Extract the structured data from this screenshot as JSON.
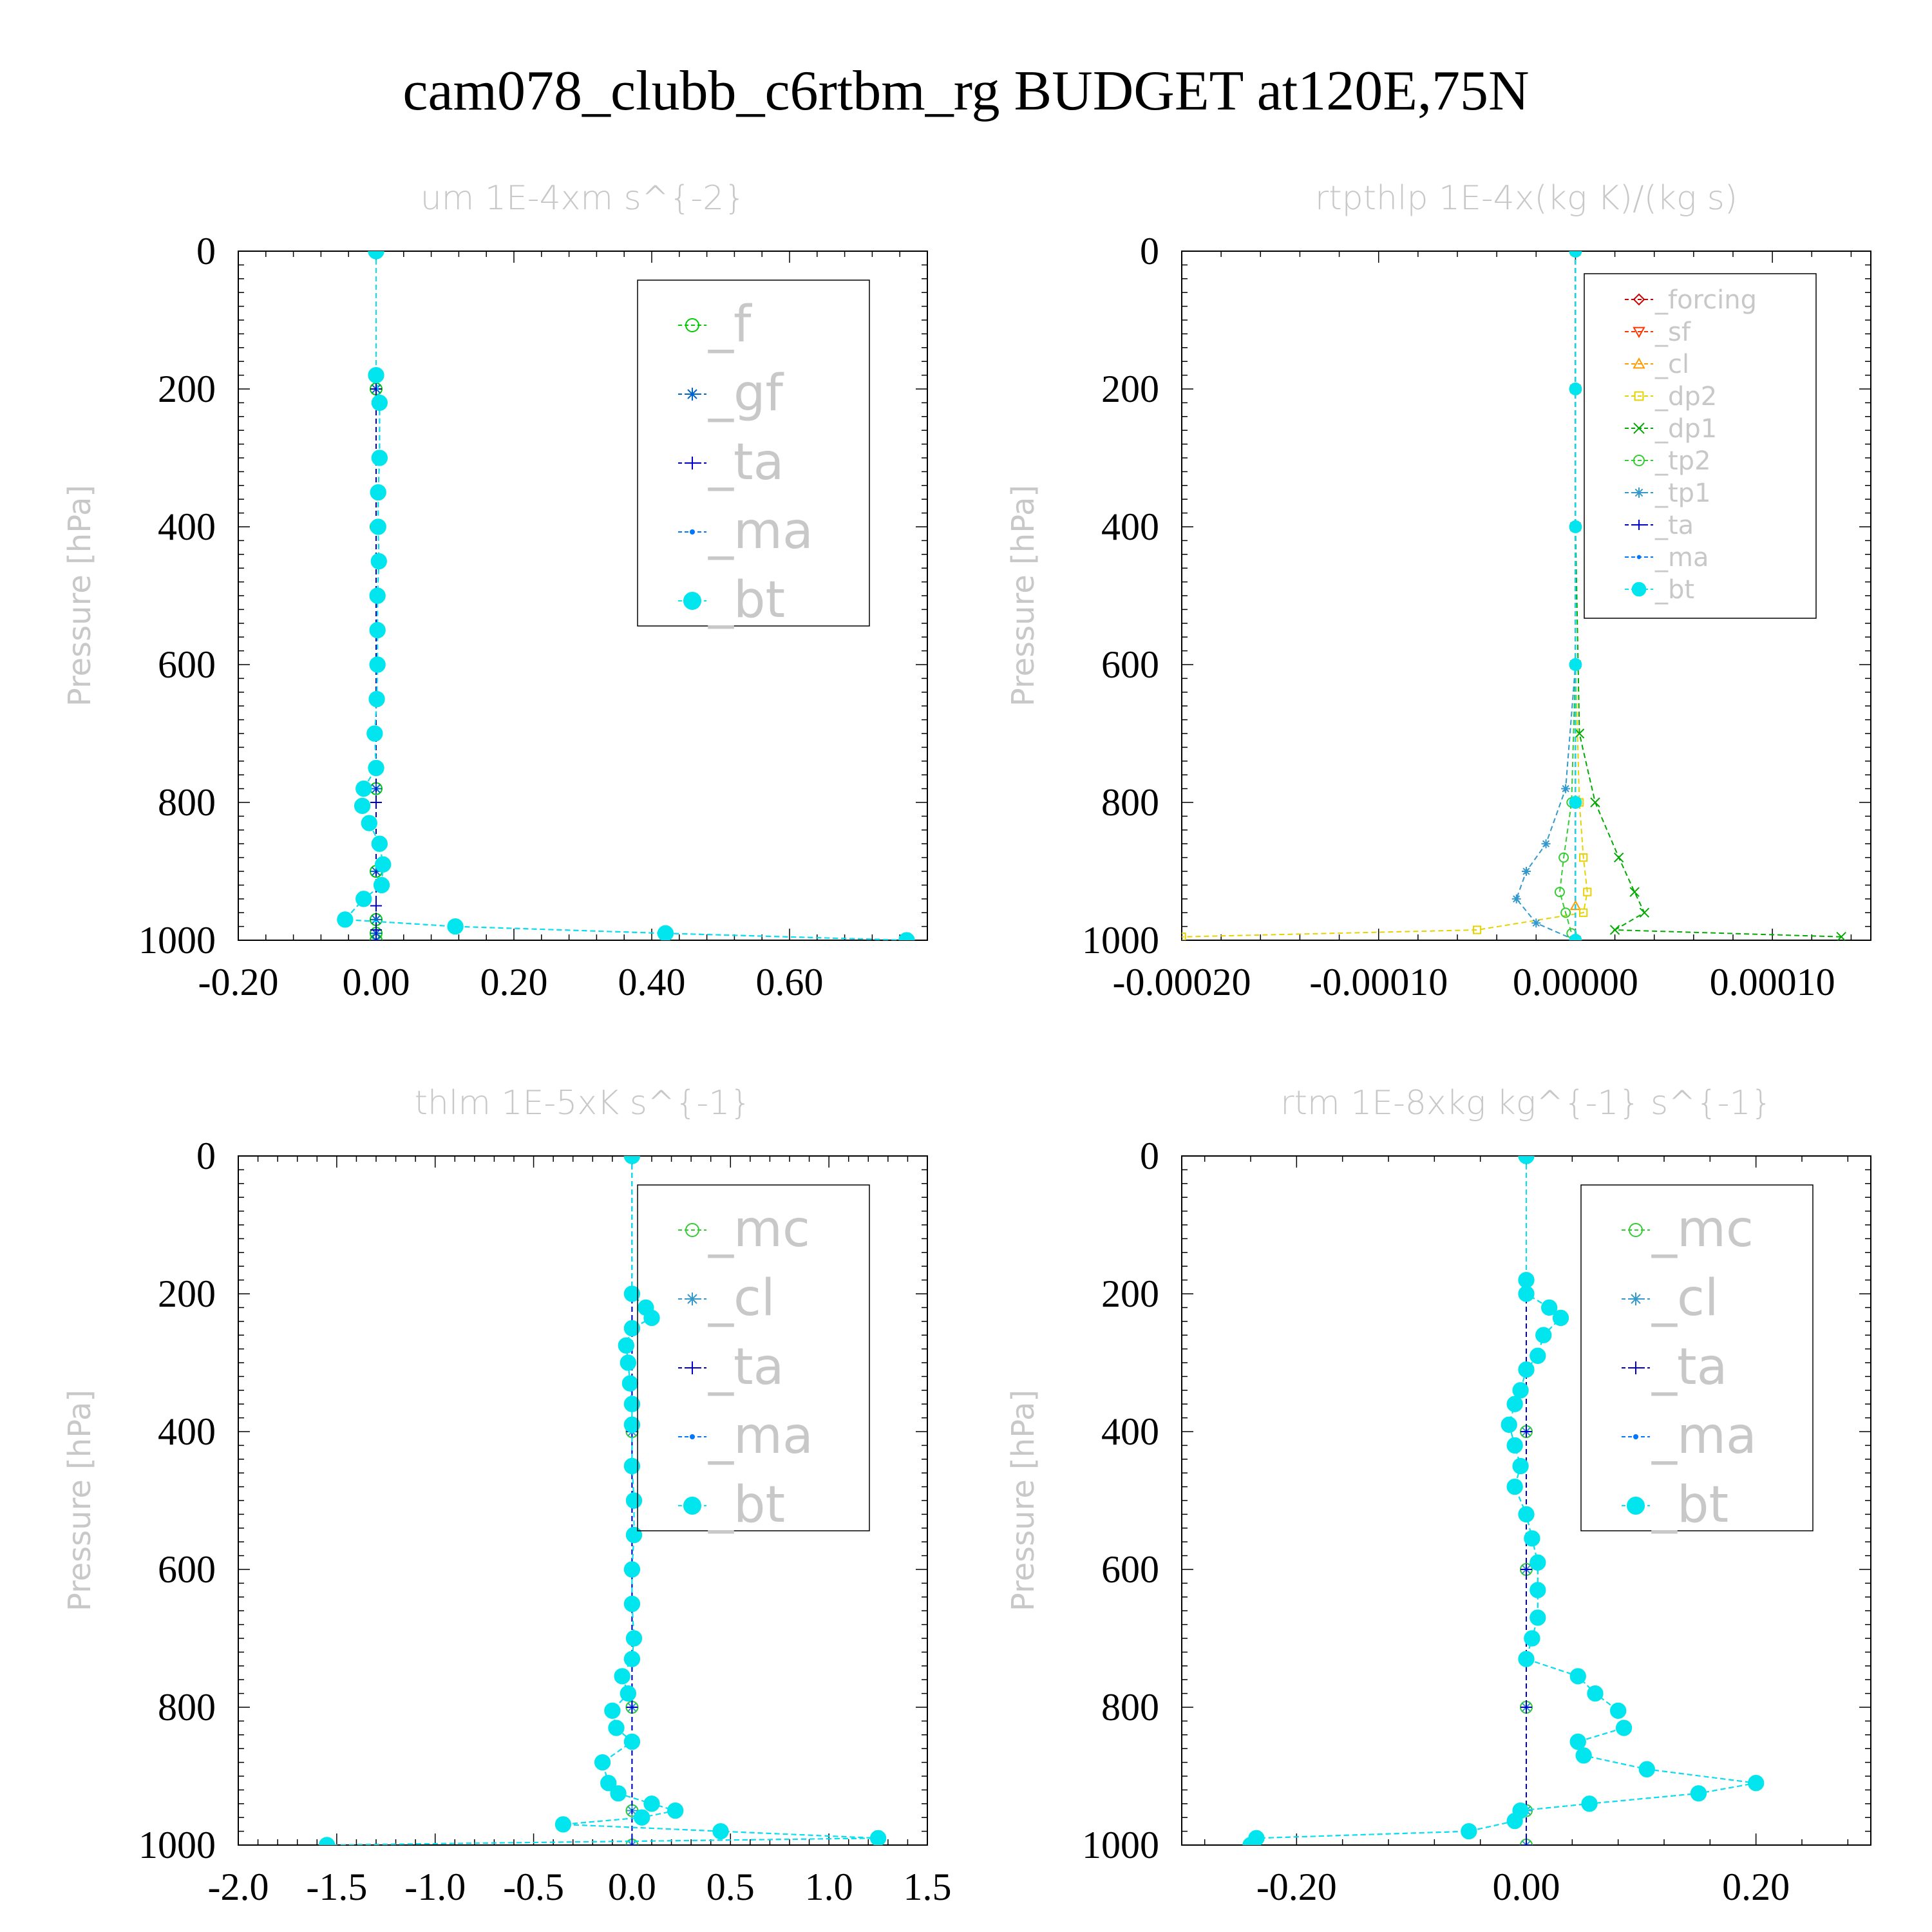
{
  "figure": {
    "title": "cam078_clubb_c6rtbm_rg  BUDGET at120E,75N"
  },
  "chart_data": [
    {
      "type": "line",
      "title": "um  1E-4xm s^{-2}",
      "ylabel": "Pressure [hPa]",
      "xlim": [
        -0.2,
        0.8
      ],
      "ylim": [
        1000,
        0
      ],
      "y_reversed": true,
      "xticks": [
        -0.2,
        0.0,
        0.2,
        0.4,
        0.6
      ],
      "xtick_labels": [
        "-0.20",
        "0.00",
        "0.20",
        "0.40",
        "0.60"
      ],
      "yticks": [
        0,
        200,
        400,
        600,
        800,
        1000
      ],
      "ytick_labels": [
        "0",
        "200",
        "400",
        "600",
        "800",
        "1000"
      ],
      "legend_position": "top-right",
      "legend_font_size": "large",
      "series": [
        {
          "name": "_f",
          "color": "#00cc00",
          "marker": "circle",
          "x": [
            0,
            0,
            0,
            0,
            0,
            0,
            0,
            0,
            0
          ],
          "y": [
            0,
            200,
            400,
            600,
            780,
            900,
            970,
            990,
            1000
          ]
        },
        {
          "name": "_gf",
          "color": "#0066cc",
          "marker": "asterisk",
          "x": [
            0,
            0,
            0,
            0,
            0,
            0,
            0,
            0,
            0
          ],
          "y": [
            0,
            200,
            400,
            600,
            780,
            900,
            970,
            990,
            1000
          ]
        },
        {
          "name": "_ta",
          "color": "#0000cc",
          "marker": "plus",
          "x": [
            0,
            0,
            0,
            0,
            0,
            0,
            0,
            0
          ],
          "y": [
            0,
            200,
            400,
            600,
            800,
            950,
            985,
            1000
          ]
        },
        {
          "name": "_ma",
          "color": "#0077ff",
          "marker": "dot",
          "x": [
            0,
            0,
            0.005,
            0.005,
            0.003,
            0.003,
            0.004,
            0.002,
            0.002,
            0.002,
            0.001,
            -0.002,
            0.0,
            -0.018,
            -0.02,
            -0.01,
            0.005,
            0.01,
            0.008,
            -0.018,
            -0.045,
            0.115,
            0.42,
            0.77
          ],
          "y": [
            0,
            180,
            220,
            300,
            350,
            400,
            450,
            500,
            550,
            600,
            650,
            700,
            750,
            780,
            805,
            830,
            860,
            890,
            920,
            940,
            970,
            980,
            990,
            1000
          ]
        },
        {
          "name": "_bt",
          "color": "#00e5ee",
          "marker": "filled-circle",
          "x": [
            0,
            0,
            0.005,
            0.005,
            0.003,
            0.003,
            0.004,
            0.002,
            0.002,
            0.002,
            0.001,
            -0.002,
            0.0,
            -0.018,
            -0.02,
            -0.01,
            0.005,
            0.01,
            0.008,
            -0.018,
            -0.045,
            0.115,
            0.42,
            0.77
          ],
          "y": [
            0,
            180,
            220,
            300,
            350,
            400,
            450,
            500,
            550,
            600,
            650,
            700,
            750,
            780,
            805,
            830,
            860,
            890,
            920,
            940,
            970,
            980,
            990,
            1000
          ]
        }
      ]
    },
    {
      "type": "line",
      "title": "rtpthlp  1E-4x(kg K)/(kg s)",
      "ylabel": "Pressure [hPa]",
      "xlim": [
        -0.0002,
        0.00015
      ],
      "ylim": [
        1000,
        0
      ],
      "y_reversed": true,
      "xticks": [
        -0.0002,
        -0.0001,
        0.0,
        0.0001
      ],
      "xtick_labels": [
        "-0.00020",
        "-0.00010",
        "0.00000",
        "0.00010"
      ],
      "yticks": [
        0,
        200,
        400,
        600,
        800,
        1000
      ],
      "ytick_labels": [
        "0",
        "200",
        "400",
        "600",
        "800",
        "1000"
      ],
      "legend_position": "top-right",
      "legend_font_size": "small",
      "series": [
        {
          "name": "_forcing",
          "color": "#cc0000",
          "marker": "diamond",
          "x": [
            0,
            0,
            0,
            0,
            0,
            0
          ],
          "y": [
            0,
            200,
            400,
            600,
            800,
            1000
          ]
        },
        {
          "name": "_sf",
          "color": "#ff3300",
          "marker": "triangle-down",
          "x": [
            0,
            0,
            0,
            0,
            0,
            0
          ],
          "y": [
            0,
            200,
            400,
            600,
            800,
            1000
          ]
        },
        {
          "name": "_cl",
          "color": "#ff9900",
          "marker": "triangle-up",
          "x": [
            0,
            0,
            0,
            0,
            0,
            0,
            0
          ],
          "y": [
            0,
            200,
            400,
            600,
            800,
            950,
            1000
          ]
        },
        {
          "name": "_dp2",
          "color": "#e6d200",
          "marker": "square",
          "x": [
            0,
            0,
            0,
            2e-06,
            4e-06,
            6e-06,
            4e-06,
            -5e-05,
            -0.0002
          ],
          "y": [
            0,
            400,
            600,
            800,
            880,
            930,
            960,
            985,
            995
          ]
        },
        {
          "name": "_dp1",
          "color": "#00aa00",
          "marker": "x",
          "x": [
            0,
            0,
            2e-06,
            1e-05,
            2.2e-05,
            3e-05,
            3.5e-05,
            2e-05,
            0.000135
          ],
          "y": [
            0,
            400,
            700,
            800,
            880,
            930,
            960,
            985,
            995
          ]
        },
        {
          "name": "_tp2",
          "color": "#33cc33",
          "marker": "circle",
          "x": [
            0,
            0,
            -2e-06,
            -6e-06,
            -8e-06,
            -5e-06,
            -2e-06
          ],
          "y": [
            0,
            600,
            800,
            880,
            930,
            960,
            990
          ]
        },
        {
          "name": "_tp1",
          "color": "#3399cc",
          "marker": "asterisk",
          "x": [
            0,
            0,
            -5e-06,
            -1.5e-05,
            -2.5e-05,
            -3e-05,
            -2e-05,
            0
          ],
          "y": [
            0,
            600,
            780,
            860,
            900,
            940,
            975,
            1000
          ]
        },
        {
          "name": "_ta",
          "color": "#0000cc",
          "marker": "plus",
          "x": [
            0,
            0,
            0,
            0,
            0,
            0
          ],
          "y": [
            0,
            200,
            400,
            600,
            800,
            1000
          ]
        },
        {
          "name": "_ma",
          "color": "#0077ff",
          "marker": "dot",
          "x": [
            0,
            0,
            0,
            0,
            0,
            0
          ],
          "y": [
            0,
            200,
            400,
            600,
            800,
            1000
          ]
        },
        {
          "name": "_bt",
          "color": "#00e5ee",
          "marker": "filled-circle",
          "x": [
            0,
            0,
            0,
            0,
            0,
            0
          ],
          "y": [
            0,
            200,
            400,
            600,
            800,
            1000
          ]
        }
      ]
    },
    {
      "type": "line",
      "title": "thlm  1E-5xK s^{-1}",
      "ylabel": "Pressure [hPa]",
      "xlim": [
        -2.0,
        1.5
      ],
      "ylim": [
        1000,
        0
      ],
      "y_reversed": true,
      "xticks": [
        -2.0,
        -1.5,
        -1.0,
        -0.5,
        0.0,
        0.5,
        1.0,
        1.5
      ],
      "xtick_labels": [
        "-2.0",
        "-1.5",
        "-1.0",
        "-0.5",
        "0.0",
        "0.5",
        "1.0",
        "1.5"
      ],
      "yticks": [
        0,
        200,
        400,
        600,
        800,
        1000
      ],
      "ytick_labels": [
        "0",
        "200",
        "400",
        "600",
        "800",
        "1000"
      ],
      "legend_position": "top-right",
      "legend_font_size": "large",
      "series": [
        {
          "name": "_mc",
          "color": "#33cc33",
          "marker": "circle",
          "x": [
            0,
            0,
            0,
            0,
            0,
            0,
            0
          ],
          "y": [
            0,
            200,
            400,
            600,
            800,
            950,
            1000
          ]
        },
        {
          "name": "_cl",
          "color": "#3399cc",
          "marker": "asterisk",
          "x": [
            0,
            0,
            0,
            0,
            0,
            0,
            0
          ],
          "y": [
            0,
            200,
            400,
            600,
            800,
            950,
            1000
          ]
        },
        {
          "name": "_ta",
          "color": "#0000cc",
          "marker": "plus",
          "x": [
            0,
            0,
            0,
            0,
            0,
            0
          ],
          "y": [
            0,
            200,
            400,
            600,
            800,
            1000
          ]
        },
        {
          "name": "_ma",
          "color": "#0077ff",
          "marker": "dot",
          "x": [
            0,
            0,
            0.07,
            0.1,
            0.0,
            -0.03,
            -0.02,
            -0.01,
            0,
            0,
            0,
            0.01,
            0.01,
            0,
            0,
            0.01,
            0.0,
            -0.05,
            -0.02,
            -0.1,
            -0.08,
            0.0,
            -0.15,
            -0.12,
            -0.07,
            0.1,
            0.22,
            0.05,
            -0.35,
            0.45,
            1.25,
            -1.55
          ],
          "y": [
            0,
            200,
            220,
            235,
            250,
            275,
            300,
            330,
            360,
            390,
            450,
            500,
            550,
            600,
            650,
            700,
            730,
            755,
            780,
            805,
            830,
            850,
            880,
            910,
            925,
            940,
            950,
            960,
            970,
            980,
            990,
            1000
          ]
        },
        {
          "name": "_bt",
          "color": "#00e5ee",
          "marker": "filled-circle",
          "x": [
            0,
            0,
            0.07,
            0.1,
            0.0,
            -0.03,
            -0.02,
            -0.01,
            0,
            0,
            0,
            0.01,
            0.01,
            0,
            0,
            0.01,
            0.0,
            -0.05,
            -0.02,
            -0.1,
            -0.08,
            0.0,
            -0.15,
            -0.12,
            -0.07,
            0.1,
            0.22,
            0.05,
            -0.35,
            0.45,
            1.25,
            -1.55
          ],
          "y": [
            0,
            200,
            220,
            235,
            250,
            275,
            300,
            330,
            360,
            390,
            450,
            500,
            550,
            600,
            650,
            700,
            730,
            755,
            780,
            805,
            830,
            850,
            880,
            910,
            925,
            940,
            950,
            960,
            970,
            980,
            990,
            1000
          ]
        }
      ]
    },
    {
      "type": "line",
      "title": "rtm  1E-8xkg kg^{-1} s^{-1}",
      "ylabel": "Pressure [hPa]",
      "xlim": [
        -0.3,
        0.3
      ],
      "ylim": [
        1000,
        0
      ],
      "y_reversed": true,
      "xticks": [
        -0.2,
        0.0,
        0.2
      ],
      "xtick_labels": [
        "-0.20",
        "0.00",
        "0.20"
      ],
      "yticks": [
        0,
        200,
        400,
        600,
        800,
        1000
      ],
      "ytick_labels": [
        "0",
        "200",
        "400",
        "600",
        "800",
        "1000"
      ],
      "legend_position": "top-right",
      "legend_font_size": "large",
      "series": [
        {
          "name": "_mc",
          "color": "#33cc33",
          "marker": "circle",
          "x": [
            0,
            0,
            0,
            0,
            0,
            0,
            0
          ],
          "y": [
            0,
            200,
            400,
            600,
            800,
            950,
            1000
          ]
        },
        {
          "name": "_cl",
          "color": "#3399cc",
          "marker": "asterisk",
          "x": [
            0,
            0,
            0,
            0,
            0,
            0,
            0
          ],
          "y": [
            0,
            200,
            400,
            600,
            800,
            950,
            1000
          ]
        },
        {
          "name": "_ta",
          "color": "#0000cc",
          "marker": "plus",
          "x": [
            0,
            0,
            0,
            0,
            0,
            0
          ],
          "y": [
            0,
            200,
            400,
            600,
            800,
            1000
          ]
        },
        {
          "name": "_ma",
          "color": "#0077ff",
          "marker": "dot",
          "x": [
            0,
            0,
            0.0,
            0.02,
            0.03,
            0.015,
            0.01,
            0.0,
            -0.005,
            -0.01,
            -0.015,
            -0.01,
            -0.005,
            -0.01,
            0,
            0.005,
            0.01,
            0.01,
            0.01,
            0.005,
            0,
            0.045,
            0.06,
            0.08,
            0.085,
            0.045,
            0.05,
            0.105,
            0.2,
            0.15,
            0.055,
            -0.005,
            -0.01,
            -0.05,
            -0.235,
            -0.24
          ],
          "y": [
            0,
            180,
            200,
            220,
            235,
            260,
            290,
            310,
            340,
            360,
            390,
            420,
            450,
            480,
            520,
            555,
            590,
            630,
            670,
            700,
            730,
            755,
            780,
            805,
            830,
            850,
            870,
            890,
            910,
            925,
            940,
            950,
            965,
            980,
            990,
            1000
          ]
        },
        {
          "name": "_bt",
          "color": "#00e5ee",
          "marker": "filled-circle",
          "x": [
            0,
            0,
            0.0,
            0.02,
            0.03,
            0.015,
            0.01,
            0.0,
            -0.005,
            -0.01,
            -0.015,
            -0.01,
            -0.005,
            -0.01,
            0,
            0.005,
            0.01,
            0.01,
            0.01,
            0.005,
            0,
            0.045,
            0.06,
            0.08,
            0.085,
            0.045,
            0.05,
            0.105,
            0.2,
            0.15,
            0.055,
            -0.005,
            -0.01,
            -0.05,
            -0.235,
            -0.24
          ],
          "y": [
            0,
            180,
            200,
            220,
            235,
            260,
            290,
            310,
            340,
            360,
            390,
            420,
            450,
            480,
            520,
            555,
            590,
            630,
            670,
            700,
            730,
            755,
            780,
            805,
            830,
            850,
            870,
            890,
            910,
            925,
            940,
            950,
            965,
            980,
            990,
            1000
          ]
        }
      ]
    }
  ]
}
